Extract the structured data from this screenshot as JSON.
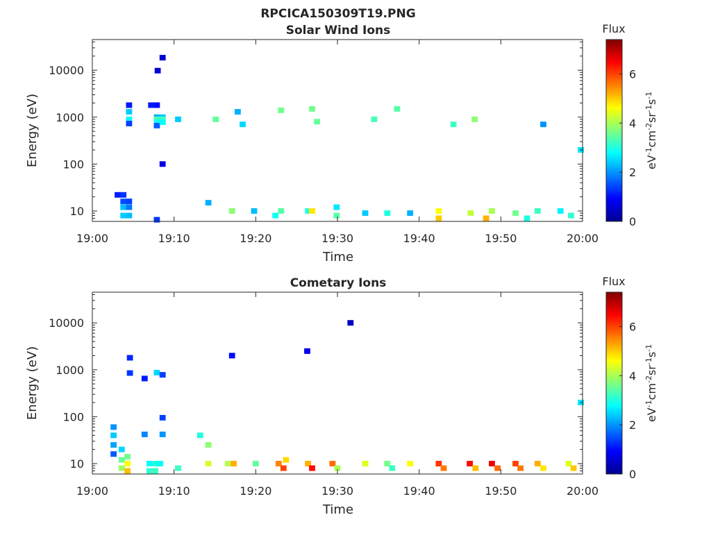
{
  "figure_title": "RPCICA150309T19.PNG",
  "chart_data": [
    {
      "type": "heatmap",
      "title": "Solar Wind Ions",
      "xlabel": "Time",
      "ylabel": "Energy (eV)",
      "x_ticks": [
        "19:00",
        "19:10",
        "19:20",
        "19:30",
        "19:40",
        "19:50",
        "20:00"
      ],
      "xlim": [
        "19:00",
        "20:00"
      ],
      "y_scale": "log",
      "y_ticks": [
        10,
        100,
        1000,
        10000
      ],
      "y_tick_labels": [
        "10",
        "100",
        "1000",
        "10000"
      ],
      "ylim": [
        6,
        45000
      ],
      "colorbar": {
        "label": "Flux",
        "units": "eV-1cm-2sr-1s-1",
        "ticks": [
          0,
          2,
          4,
          6
        ],
        "range": [
          0,
          7.4
        ],
        "colormap": "jet"
      },
      "cells": [
        {
          "t": 3.1,
          "e": 22,
          "v": 1.1
        },
        {
          "t": 3.8,
          "e": 22,
          "v": 1.3
        },
        {
          "t": 3.8,
          "e": 16,
          "v": 1.5
        },
        {
          "t": 3.8,
          "e": 12,
          "v": 2.3
        },
        {
          "t": 3.8,
          "e": 8,
          "v": 2.4
        },
        {
          "t": 4.5,
          "e": 16,
          "v": 1.4
        },
        {
          "t": 4.5,
          "e": 12,
          "v": 1.8
        },
        {
          "t": 4.5,
          "e": 8,
          "v": 2.3
        },
        {
          "t": 4.5,
          "e": 1800,
          "v": 1.1
        },
        {
          "t": 4.5,
          "e": 1300,
          "v": 2.4
        },
        {
          "t": 4.5,
          "e": 900,
          "v": 2.8
        },
        {
          "t": 4.5,
          "e": 730,
          "v": 1.4
        },
        {
          "t": 7.2,
          "e": 1800,
          "v": 1.1
        },
        {
          "t": 7.9,
          "e": 1800,
          "v": 1.0
        },
        {
          "t": 7.9,
          "e": 1000,
          "v": 2.2
        },
        {
          "t": 7.9,
          "e": 900,
          "v": 3.3
        },
        {
          "t": 7.9,
          "e": 780,
          "v": 2.9
        },
        {
          "t": 7.9,
          "e": 660,
          "v": 1.6
        },
        {
          "t": 8.6,
          "e": 1000,
          "v": 2.4
        },
        {
          "t": 8.6,
          "e": 900,
          "v": 3.2
        },
        {
          "t": 8.6,
          "e": 780,
          "v": 2.8
        },
        {
          "t": 8.6,
          "e": 18500,
          "v": 0.6
        },
        {
          "t": 8.0,
          "e": 9800,
          "v": 0.6
        },
        {
          "t": 8.6,
          "e": 100,
          "v": 0.7
        },
        {
          "t": 7.9,
          "e": 6.5,
          "v": 1.3
        },
        {
          "t": 10.5,
          "e": 900,
          "v": 2.4
        },
        {
          "t": 14.2,
          "e": 15,
          "v": 2.2
        },
        {
          "t": 15.1,
          "e": 900,
          "v": 3.5
        },
        {
          "t": 17.1,
          "e": 10,
          "v": 3.8
        },
        {
          "t": 17.8,
          "e": 1300,
          "v": 2.2
        },
        {
          "t": 18.4,
          "e": 700,
          "v": 2.5
        },
        {
          "t": 19.8,
          "e": 10,
          "v": 2.3
        },
        {
          "t": 22.4,
          "e": 8,
          "v": 2.9
        },
        {
          "t": 23.1,
          "e": 10,
          "v": 3.4
        },
        {
          "t": 23.1,
          "e": 1400,
          "v": 3.6
        },
        {
          "t": 26.4,
          "e": 10,
          "v": 3.0
        },
        {
          "t": 26.9,
          "e": 10,
          "v": 4.8
        },
        {
          "t": 26.9,
          "e": 1500,
          "v": 3.6
        },
        {
          "t": 27.5,
          "e": 800,
          "v": 3.5
        },
        {
          "t": 29.9,
          "e": 12,
          "v": 2.6
        },
        {
          "t": 29.9,
          "e": 8,
          "v": 3.4
        },
        {
          "t": 33.4,
          "e": 9,
          "v": 2.4
        },
        {
          "t": 34.5,
          "e": 900,
          "v": 3.3
        },
        {
          "t": 36.1,
          "e": 9,
          "v": 3.0
        },
        {
          "t": 37.3,
          "e": 1500,
          "v": 3.4
        },
        {
          "t": 38.9,
          "e": 9,
          "v": 2.2
        },
        {
          "t": 42.4,
          "e": 10,
          "v": 4.6
        },
        {
          "t": 42.4,
          "e": 7,
          "v": 5.0
        },
        {
          "t": 44.2,
          "e": 700,
          "v": 3.2
        },
        {
          "t": 46.3,
          "e": 9,
          "v": 4.2
        },
        {
          "t": 46.8,
          "e": 900,
          "v": 3.8
        },
        {
          "t": 48.2,
          "e": 7,
          "v": 5.2
        },
        {
          "t": 48.9,
          "e": 10,
          "v": 4.0
        },
        {
          "t": 51.8,
          "e": 9,
          "v": 3.6
        },
        {
          "t": 53.2,
          "e": 7,
          "v": 3.0
        },
        {
          "t": 54.5,
          "e": 10,
          "v": 3.2
        },
        {
          "t": 55.2,
          "e": 700,
          "v": 2.0
        },
        {
          "t": 57.3,
          "e": 10,
          "v": 2.7
        },
        {
          "t": 58.6,
          "e": 8,
          "v": 3.1
        },
        {
          "t": 59.8,
          "e": 200,
          "v": 2.6
        }
      ]
    },
    {
      "type": "heatmap",
      "title": "Cometary Ions",
      "xlabel": "Time",
      "ylabel": "Energy (eV)",
      "x_ticks": [
        "19:00",
        "19:10",
        "19:20",
        "19:30",
        "19:40",
        "19:50",
        "20:00"
      ],
      "xlim": [
        "19:00",
        "20:00"
      ],
      "y_scale": "log",
      "y_ticks": [
        10,
        100,
        1000,
        10000
      ],
      "y_tick_labels": [
        "10",
        "100",
        "1000",
        "10000"
      ],
      "ylim": [
        6,
        45000
      ],
      "colorbar": {
        "label": "Flux",
        "units": "eV-1cm-2sr-1s-1",
        "ticks": [
          0,
          2,
          4,
          6
        ],
        "range": [
          0,
          7.4
        ],
        "colormap": "jet"
      },
      "cells": [
        {
          "t": 2.6,
          "e": 60,
          "v": 2.0
        },
        {
          "t": 2.6,
          "e": 40,
          "v": 2.4
        },
        {
          "t": 2.6,
          "e": 25,
          "v": 2.1
        },
        {
          "t": 2.6,
          "e": 16,
          "v": 1.6
        },
        {
          "t": 3.6,
          "e": 20,
          "v": 2.5
        },
        {
          "t": 3.6,
          "e": 12,
          "v": 3.5
        },
        {
          "t": 3.6,
          "e": 8,
          "v": 3.9
        },
        {
          "t": 4.3,
          "e": 14,
          "v": 3.6
        },
        {
          "t": 4.3,
          "e": 10,
          "v": 4.6
        },
        {
          "t": 4.3,
          "e": 7,
          "v": 5.1
        },
        {
          "t": 4.6,
          "e": 1800,
          "v": 1.2
        },
        {
          "t": 4.6,
          "e": 850,
          "v": 1.3
        },
        {
          "t": 6.4,
          "e": 650,
          "v": 1.1
        },
        {
          "t": 6.4,
          "e": 42,
          "v": 1.9
        },
        {
          "t": 7.0,
          "e": 10,
          "v": 2.8
        },
        {
          "t": 7.0,
          "e": 7,
          "v": 3.1
        },
        {
          "t": 7.7,
          "e": 10,
          "v": 3.0
        },
        {
          "t": 7.7,
          "e": 7,
          "v": 3.2
        },
        {
          "t": 7.9,
          "e": 870,
          "v": 2.5
        },
        {
          "t": 8.6,
          "e": 780,
          "v": 1.4
        },
        {
          "t": 8.6,
          "e": 95,
          "v": 1.4
        },
        {
          "t": 8.6,
          "e": 42,
          "v": 2.0
        },
        {
          "t": 8.3,
          "e": 10,
          "v": 2.8
        },
        {
          "t": 10.5,
          "e": 8,
          "v": 3.2
        },
        {
          "t": 13.2,
          "e": 40,
          "v": 3.0
        },
        {
          "t": 14.2,
          "e": 25,
          "v": 3.8
        },
        {
          "t": 14.2,
          "e": 10,
          "v": 4.3
        },
        {
          "t": 16.6,
          "e": 10,
          "v": 4.1
        },
        {
          "t": 17.3,
          "e": 10,
          "v": 5.2
        },
        {
          "t": 17.1,
          "e": 2000,
          "v": 1.0
        },
        {
          "t": 20.0,
          "e": 10,
          "v": 3.5
        },
        {
          "t": 22.8,
          "e": 10,
          "v": 5.5
        },
        {
          "t": 23.4,
          "e": 8,
          "v": 6.0
        },
        {
          "t": 23.7,
          "e": 12,
          "v": 4.9
        },
        {
          "t": 26.3,
          "e": 2500,
          "v": 0.8
        },
        {
          "t": 26.4,
          "e": 10,
          "v": 5.2
        },
        {
          "t": 26.9,
          "e": 8,
          "v": 6.4
        },
        {
          "t": 29.4,
          "e": 10,
          "v": 5.7
        },
        {
          "t": 30.0,
          "e": 8,
          "v": 4.0
        },
        {
          "t": 31.6,
          "e": 10000,
          "v": 0.5
        },
        {
          "t": 33.4,
          "e": 10,
          "v": 4.4
        },
        {
          "t": 36.1,
          "e": 10,
          "v": 3.6
        },
        {
          "t": 36.7,
          "e": 8,
          "v": 3.2
        },
        {
          "t": 38.9,
          "e": 10,
          "v": 4.6
        },
        {
          "t": 42.4,
          "e": 10,
          "v": 6.1
        },
        {
          "t": 43.0,
          "e": 8,
          "v": 5.6
        },
        {
          "t": 46.2,
          "e": 10,
          "v": 6.4
        },
        {
          "t": 46.9,
          "e": 8,
          "v": 5.1
        },
        {
          "t": 48.9,
          "e": 10,
          "v": 6.6
        },
        {
          "t": 49.6,
          "e": 8,
          "v": 5.7
        },
        {
          "t": 51.8,
          "e": 10,
          "v": 6.0
        },
        {
          "t": 52.4,
          "e": 8,
          "v": 5.6
        },
        {
          "t": 54.5,
          "e": 10,
          "v": 5.2
        },
        {
          "t": 55.2,
          "e": 8,
          "v": 4.8
        },
        {
          "t": 58.3,
          "e": 10,
          "v": 4.4
        },
        {
          "t": 58.9,
          "e": 8,
          "v": 5.0
        },
        {
          "t": 59.8,
          "e": 200,
          "v": 2.6
        }
      ]
    }
  ]
}
